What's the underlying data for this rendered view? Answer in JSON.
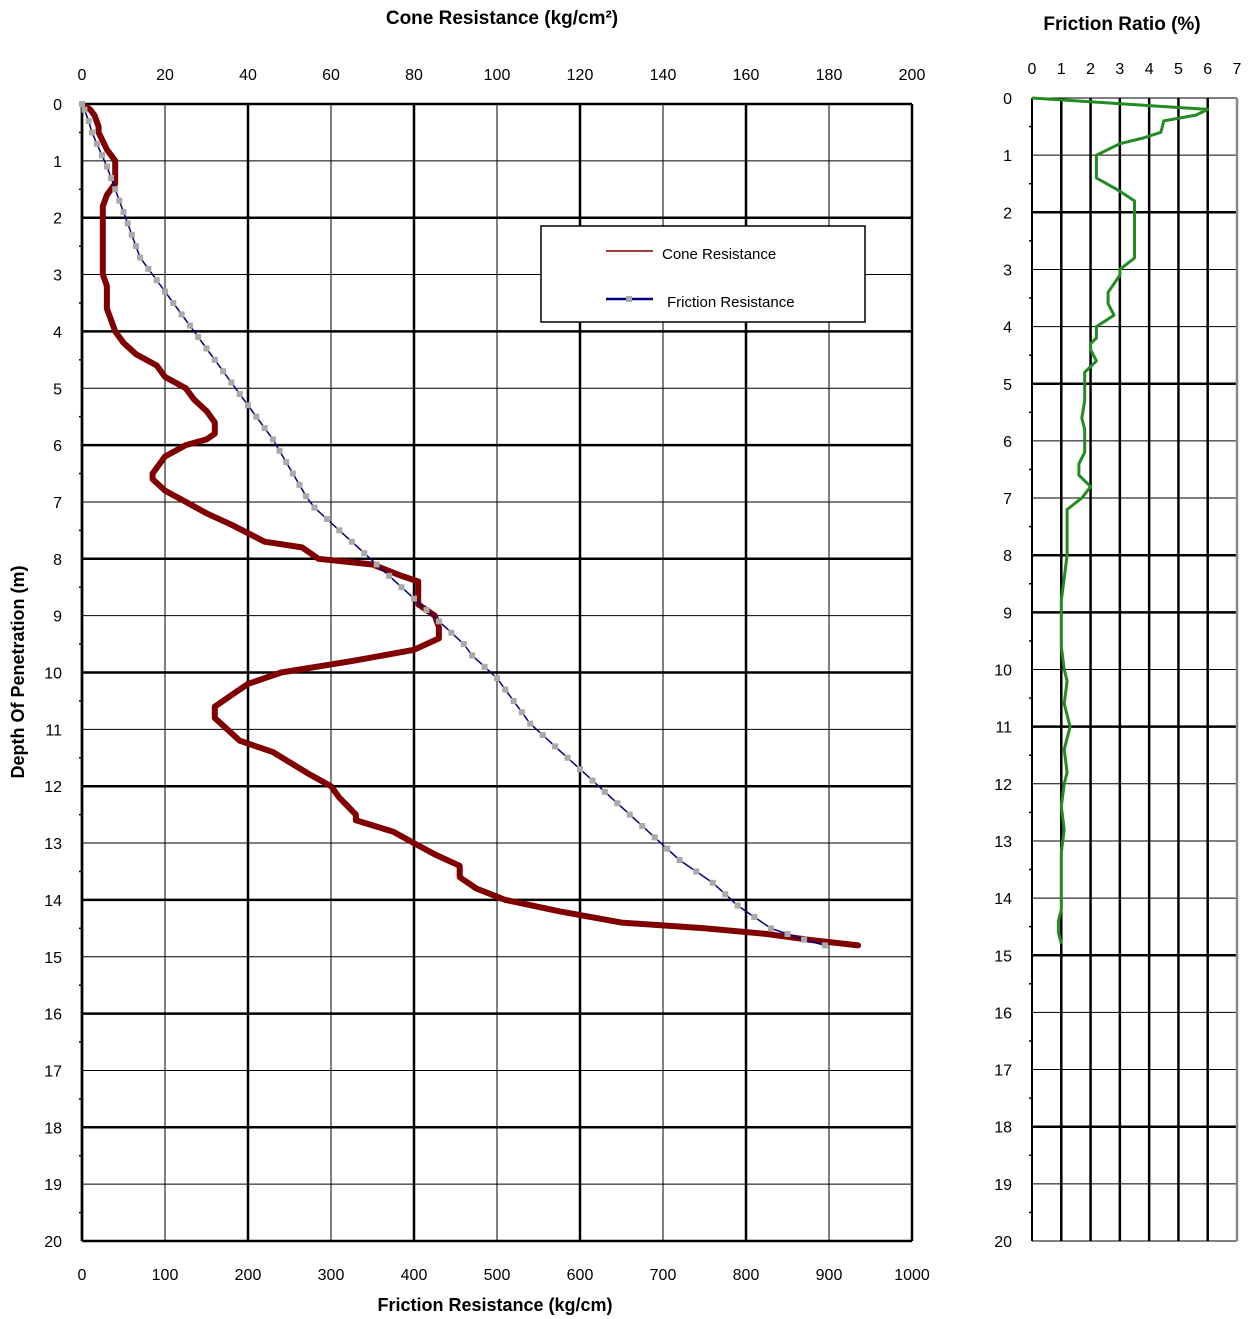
{
  "chart_data": [
    {
      "type": "line",
      "title": "Cone Resistance (kg/cm²)",
      "top_axis_label": "Cone Resistance (kg/cm²)",
      "xlabel": "Friction Resistance (kg/cm)",
      "ylabel": "Depth Of Penetration (m)",
      "x_top_ticks": [
        "0",
        "20",
        "40",
        "60",
        "80",
        "100",
        "120",
        "140",
        "160",
        "180",
        "200"
      ],
      "x_bottom_ticks": [
        "0",
        "100",
        "200",
        "300",
        "400",
        "500",
        "600",
        "700",
        "800",
        "900",
        "1000"
      ],
      "y_ticks": [
        "0",
        "1",
        "2",
        "3",
        "4",
        "5",
        "6",
        "7",
        "8",
        "9",
        "10",
        "11",
        "12",
        "13",
        "14",
        "15",
        "16",
        "17",
        "18",
        "19",
        "20"
      ],
      "top_xlim": [
        0,
        200
      ],
      "bottom_xlim": [
        0,
        1000
      ],
      "ylim": [
        0,
        20
      ],
      "y_inverted": true,
      "grid": true,
      "legend_position": "top-right",
      "legend": [
        {
          "label": "Cone Resistance",
          "marker": "line",
          "color": "#800000"
        },
        {
          "label": "Friction Resistance",
          "marker": "line-square",
          "color": "#000080"
        }
      ],
      "series": [
        {
          "name": "Cone Resistance",
          "axis": "top",
          "units": "kg/cm²",
          "color": "#800000",
          "points": [
            [
              0,
              0
            ],
            [
              2,
              0.1
            ],
            [
              3,
              0.2
            ],
            [
              4,
              0.4
            ],
            [
              4,
              0.5
            ],
            [
              6,
              0.8
            ],
            [
              8,
              1.0
            ],
            [
              8,
              1.4
            ],
            [
              6,
              1.6
            ],
            [
              5,
              1.8
            ],
            [
              5,
              2.2
            ],
            [
              5,
              2.8
            ],
            [
              5,
              3.0
            ],
            [
              6,
              3.2
            ],
            [
              6,
              3.6
            ],
            [
              7,
              3.8
            ],
            [
              8,
              4.0
            ],
            [
              10,
              4.2
            ],
            [
              13,
              4.4
            ],
            [
              18,
              4.6
            ],
            [
              20,
              4.8
            ],
            [
              25,
              5.0
            ],
            [
              27,
              5.2
            ],
            [
              30,
              5.4
            ],
            [
              32,
              5.6
            ],
            [
              32,
              5.8
            ],
            [
              30,
              5.9
            ],
            [
              25,
              6.0
            ],
            [
              20,
              6.2
            ],
            [
              17,
              6.5
            ],
            [
              17,
              6.6
            ],
            [
              20,
              6.8
            ],
            [
              25,
              7.0
            ],
            [
              30,
              7.2
            ],
            [
              36,
              7.4
            ],
            [
              44,
              7.7
            ],
            [
              53,
              7.8
            ],
            [
              57,
              8.0
            ],
            [
              70,
              8.1
            ],
            [
              77,
              8.3
            ],
            [
              81,
              8.4
            ],
            [
              81,
              8.8
            ],
            [
              85,
              9.0
            ],
            [
              86,
              9.2
            ],
            [
              86,
              9.4
            ],
            [
              80,
              9.6
            ],
            [
              65,
              9.8
            ],
            [
              48,
              10.0
            ],
            [
              40,
              10.2
            ],
            [
              36,
              10.4
            ],
            [
              32,
              10.6
            ],
            [
              32,
              10.8
            ],
            [
              35,
              11.0
            ],
            [
              38,
              11.2
            ],
            [
              46,
              11.4
            ],
            [
              55,
              11.8
            ],
            [
              60,
              12.0
            ],
            [
              62,
              12.2
            ],
            [
              66,
              12.5
            ],
            [
              66,
              12.6
            ],
            [
              75,
              12.8
            ],
            [
              80,
              13.0
            ],
            [
              85,
              13.2
            ],
            [
              91,
              13.4
            ],
            [
              91,
              13.6
            ],
            [
              95,
              13.8
            ],
            [
              102,
              14.0
            ],
            [
              115,
              14.2
            ],
            [
              130,
              14.4
            ],
            [
              150,
              14.5
            ],
            [
              165,
              14.6
            ],
            [
              175,
              14.7
            ],
            [
              187,
              14.8
            ]
          ]
        },
        {
          "name": "Friction Resistance",
          "axis": "bottom",
          "units": "kg/cm",
          "color": "#000080",
          "marker_color": "#a9a9a9",
          "points": [
            [
              0,
              0
            ],
            [
              3,
              0.1
            ],
            [
              8,
              0.3
            ],
            [
              12,
              0.5
            ],
            [
              18,
              0.7
            ],
            [
              24,
              0.9
            ],
            [
              30,
              1.1
            ],
            [
              35,
              1.3
            ],
            [
              40,
              1.5
            ],
            [
              45,
              1.7
            ],
            [
              50,
              1.9
            ],
            [
              55,
              2.1
            ],
            [
              60,
              2.3
            ],
            [
              65,
              2.5
            ],
            [
              70,
              2.7
            ],
            [
              80,
              2.9
            ],
            [
              90,
              3.1
            ],
            [
              100,
              3.3
            ],
            [
              110,
              3.5
            ],
            [
              120,
              3.7
            ],
            [
              130,
              3.9
            ],
            [
              140,
              4.1
            ],
            [
              150,
              4.3
            ],
            [
              160,
              4.5
            ],
            [
              170,
              4.7
            ],
            [
              180,
              4.9
            ],
            [
              190,
              5.1
            ],
            [
              200,
              5.3
            ],
            [
              210,
              5.5
            ],
            [
              220,
              5.7
            ],
            [
              230,
              5.9
            ],
            [
              238,
              6.1
            ],
            [
              246,
              6.3
            ],
            [
              254,
              6.5
            ],
            [
              262,
              6.7
            ],
            [
              270,
              6.9
            ],
            [
              280,
              7.1
            ],
            [
              295,
              7.3
            ],
            [
              310,
              7.5
            ],
            [
              325,
              7.7
            ],
            [
              340,
              7.9
            ],
            [
              355,
              8.1
            ],
            [
              370,
              8.3
            ],
            [
              385,
              8.5
            ],
            [
              400,
              8.7
            ],
            [
              415,
              8.9
            ],
            [
              430,
              9.1
            ],
            [
              445,
              9.3
            ],
            [
              460,
              9.5
            ],
            [
              470,
              9.7
            ],
            [
              485,
              9.9
            ],
            [
              500,
              10.1
            ],
            [
              510,
              10.3
            ],
            [
              520,
              10.5
            ],
            [
              530,
              10.7
            ],
            [
              540,
              10.9
            ],
            [
              555,
              11.1
            ],
            [
              570,
              11.3
            ],
            [
              585,
              11.5
            ],
            [
              600,
              11.7
            ],
            [
              615,
              11.9
            ],
            [
              630,
              12.1
            ],
            [
              645,
              12.3
            ],
            [
              660,
              12.5
            ],
            [
              675,
              12.7
            ],
            [
              690,
              12.9
            ],
            [
              705,
              13.1
            ],
            [
              720,
              13.3
            ],
            [
              740,
              13.5
            ],
            [
              760,
              13.7
            ],
            [
              775,
              13.9
            ],
            [
              790,
              14.1
            ],
            [
              810,
              14.3
            ],
            [
              830,
              14.5
            ],
            [
              850,
              14.6
            ],
            [
              870,
              14.7
            ],
            [
              895,
              14.8
            ]
          ]
        }
      ]
    },
    {
      "type": "line",
      "title": "Friction Ratio (%)",
      "x_ticks": [
        "0",
        "1",
        "2",
        "3",
        "4",
        "5",
        "6",
        "7"
      ],
      "y_ticks": [
        "0",
        "1",
        "2",
        "3",
        "4",
        "5",
        "6",
        "7",
        "8",
        "9",
        "10",
        "11",
        "12",
        "13",
        "14",
        "15",
        "16",
        "17",
        "18",
        "19",
        "20"
      ],
      "xlim": [
        0,
        7
      ],
      "ylim": [
        0,
        20
      ],
      "y_inverted": true,
      "grid": true,
      "series": [
        {
          "name": "Friction Ratio",
          "color": "#228b22",
          "points": [
            [
              0,
              0
            ],
            [
              6,
              0.2
            ],
            [
              5.6,
              0.3
            ],
            [
              4.5,
              0.4
            ],
            [
              4.4,
              0.6
            ],
            [
              3.8,
              0.7
            ],
            [
              3,
              0.8
            ],
            [
              2.2,
              1.0
            ],
            [
              2.2,
              1.4
            ],
            [
              2.9,
              1.6
            ],
            [
              3.5,
              1.8
            ],
            [
              3.5,
              2.8
            ],
            [
              3,
              3.0
            ],
            [
              3,
              3.1
            ],
            [
              2.6,
              3.4
            ],
            [
              2.6,
              3.6
            ],
            [
              2.8,
              3.8
            ],
            [
              2.2,
              4.0
            ],
            [
              2.2,
              4.2
            ],
            [
              2,
              4.3
            ],
            [
              2,
              4.4
            ],
            [
              2.2,
              4.6
            ],
            [
              1.8,
              4.8
            ],
            [
              1.8,
              5.3
            ],
            [
              1.7,
              5.6
            ],
            [
              1.8,
              5.8
            ],
            [
              1.8,
              6.2
            ],
            [
              1.6,
              6.4
            ],
            [
              1.6,
              6.6
            ],
            [
              2,
              6.8
            ],
            [
              1.7,
              7.0
            ],
            [
              1.2,
              7.2
            ],
            [
              1.2,
              7.6
            ],
            [
              1.2,
              8.0
            ],
            [
              1.1,
              8.4
            ],
            [
              1,
              8.8
            ],
            [
              1,
              9.6
            ],
            [
              1.1,
              10.0
            ],
            [
              1.2,
              10.2
            ],
            [
              1.1,
              10.6
            ],
            [
              1.3,
              11.0
            ],
            [
              1.1,
              11.4
            ],
            [
              1.2,
              11.8
            ],
            [
              1.1,
              12.0
            ],
            [
              1,
              12.4
            ],
            [
              1.1,
              12.8
            ],
            [
              1,
              13.2
            ],
            [
              1,
              13.6
            ],
            [
              1,
              14.0
            ],
            [
              1,
              14.2
            ],
            [
              0.9,
              14.4
            ],
            [
              0.9,
              14.6
            ],
            [
              1,
              14.8
            ]
          ]
        }
      ]
    }
  ]
}
